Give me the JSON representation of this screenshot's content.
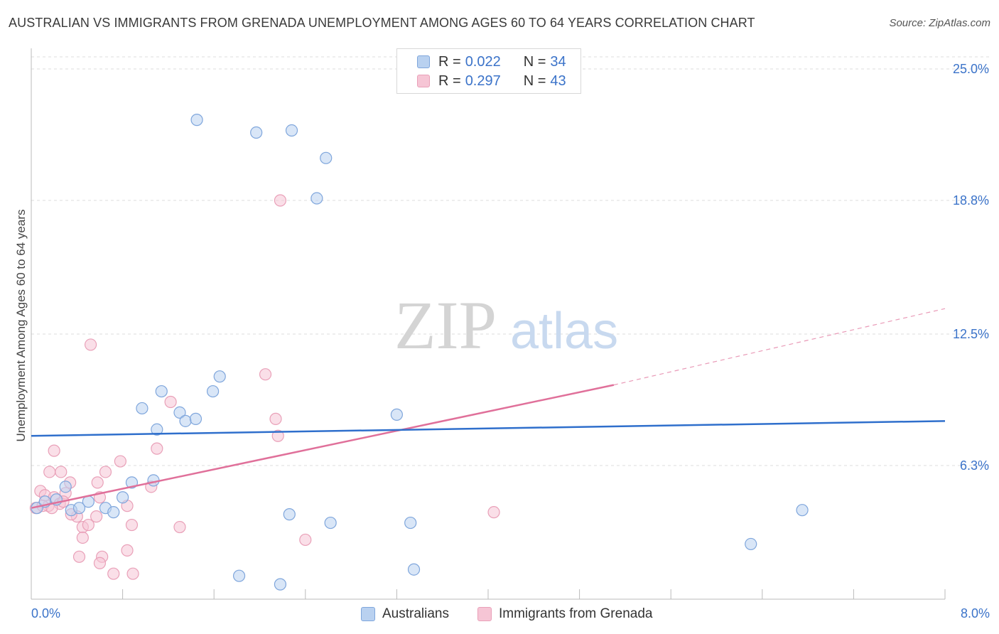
{
  "title": "AUSTRALIAN VS IMMIGRANTS FROM GRENADA UNEMPLOYMENT AMONG AGES 60 TO 64 YEARS CORRELATION CHART",
  "source": "Source: ZipAtlas.com",
  "legend": {
    "rows": [
      {
        "r_label": "R =",
        "r_value": "0.022",
        "n_label": "N =",
        "n_value": "34"
      },
      {
        "r_label": "R =",
        "r_value": "0.297",
        "n_label": "N =",
        "n_value": "43"
      }
    ]
  },
  "colors": {
    "blue_fill": "#b9d1f0",
    "blue_stroke": "#7fa6dc",
    "blue_line": "#2f6fcc",
    "pink_fill": "#f6c5d5",
    "pink_stroke": "#e9a0b8",
    "pink_line": "#e0709a",
    "tick_text": "#3b73c9",
    "grid": "#dddddd"
  },
  "watermark": {
    "zip": "ZIP",
    "atlas": "atlas"
  },
  "chart_data": {
    "type": "scatter",
    "title": "AUSTRALIAN VS IMMIGRANTS FROM GRENADA UNEMPLOYMENT AMONG AGES 60 TO 64 YEARS CORRELATION CHART",
    "xlabel": "",
    "ylabel": "Unemployment Among Ages 60 to 64 years",
    "xlim": [
      0,
      8.0
    ],
    "ylim": [
      0,
      25.0
    ],
    "x_tick_labels": [
      "0.0%",
      "8.0%"
    ],
    "y_ticks": [
      6.3,
      12.5,
      18.8,
      25.0
    ],
    "y_tick_labels": [
      "6.3%",
      "12.5%",
      "18.8%",
      "25.0%"
    ],
    "series": [
      {
        "name": "Australians",
        "R": 0.022,
        "N": 34,
        "trend": {
          "x": [
            0,
            8.0
          ],
          "y": [
            7.7,
            8.4
          ]
        },
        "points": [
          [
            0.05,
            4.3
          ],
          [
            0.12,
            4.6
          ],
          [
            0.22,
            4.7
          ],
          [
            0.3,
            5.3
          ],
          [
            0.35,
            4.2
          ],
          [
            0.5,
            4.6
          ],
          [
            0.42,
            4.3
          ],
          [
            0.65,
            4.3
          ],
          [
            0.72,
            4.1
          ],
          [
            0.88,
            5.5
          ],
          [
            0.8,
            4.8
          ],
          [
            0.97,
            9.0
          ],
          [
            1.1,
            8.0
          ],
          [
            1.14,
            9.8
          ],
          [
            1.07,
            5.6
          ],
          [
            1.3,
            8.8
          ],
          [
            1.35,
            8.4
          ],
          [
            1.44,
            8.5
          ],
          [
            1.59,
            9.8
          ],
          [
            1.65,
            10.5
          ],
          [
            1.45,
            22.6
          ],
          [
            1.97,
            22.0
          ],
          [
            2.28,
            22.1
          ],
          [
            2.58,
            20.8
          ],
          [
            2.5,
            18.9
          ],
          [
            2.26,
            4.0
          ],
          [
            2.62,
            3.6
          ],
          [
            1.82,
            1.1
          ],
          [
            2.18,
            0.7
          ],
          [
            3.2,
            8.7
          ],
          [
            3.32,
            3.6
          ],
          [
            3.35,
            1.4
          ],
          [
            6.3,
            2.6
          ],
          [
            6.75,
            4.2
          ]
        ]
      },
      {
        "name": "Immigrants from Grenada",
        "R": 0.297,
        "N": 43,
        "trend": {
          "x": [
            0,
            5.1
          ],
          "y": [
            4.3,
            10.1
          ]
        },
        "trend_dashed": {
          "x": [
            5.1,
            8.0
          ],
          "y": [
            10.1,
            13.7
          ]
        },
        "points": [
          [
            0.04,
            4.3
          ],
          [
            0.08,
            5.1
          ],
          [
            0.12,
            4.9
          ],
          [
            0.15,
            4.4
          ],
          [
            0.2,
            4.8
          ],
          [
            0.25,
            4.5
          ],
          [
            0.3,
            5.0
          ],
          [
            0.34,
            5.5
          ],
          [
            0.16,
            6.0
          ],
          [
            0.26,
            6.0
          ],
          [
            0.2,
            7.0
          ],
          [
            0.4,
            3.9
          ],
          [
            0.45,
            3.4
          ],
          [
            0.45,
            2.9
          ],
          [
            0.42,
            2.0
          ],
          [
            0.5,
            3.5
          ],
          [
            0.57,
            3.9
          ],
          [
            0.6,
            4.8
          ],
          [
            0.58,
            5.5
          ],
          [
            0.62,
            2.0
          ],
          [
            0.6,
            1.7
          ],
          [
            0.72,
            1.2
          ],
          [
            0.65,
            6.0
          ],
          [
            0.78,
            6.5
          ],
          [
            0.84,
            4.4
          ],
          [
            0.84,
            2.3
          ],
          [
            0.88,
            3.5
          ],
          [
            0.89,
            1.2
          ],
          [
            1.05,
            5.3
          ],
          [
            1.1,
            7.1
          ],
          [
            1.22,
            9.3
          ],
          [
            1.3,
            3.4
          ],
          [
            0.52,
            12.0
          ],
          [
            2.18,
            18.8
          ],
          [
            2.05,
            10.6
          ],
          [
            2.14,
            8.5
          ],
          [
            2.16,
            7.7
          ],
          [
            2.4,
            2.8
          ],
          [
            4.05,
            4.1
          ],
          [
            0.1,
            4.4
          ],
          [
            0.18,
            4.3
          ],
          [
            0.28,
            4.6
          ],
          [
            0.35,
            4.0
          ]
        ]
      }
    ]
  }
}
